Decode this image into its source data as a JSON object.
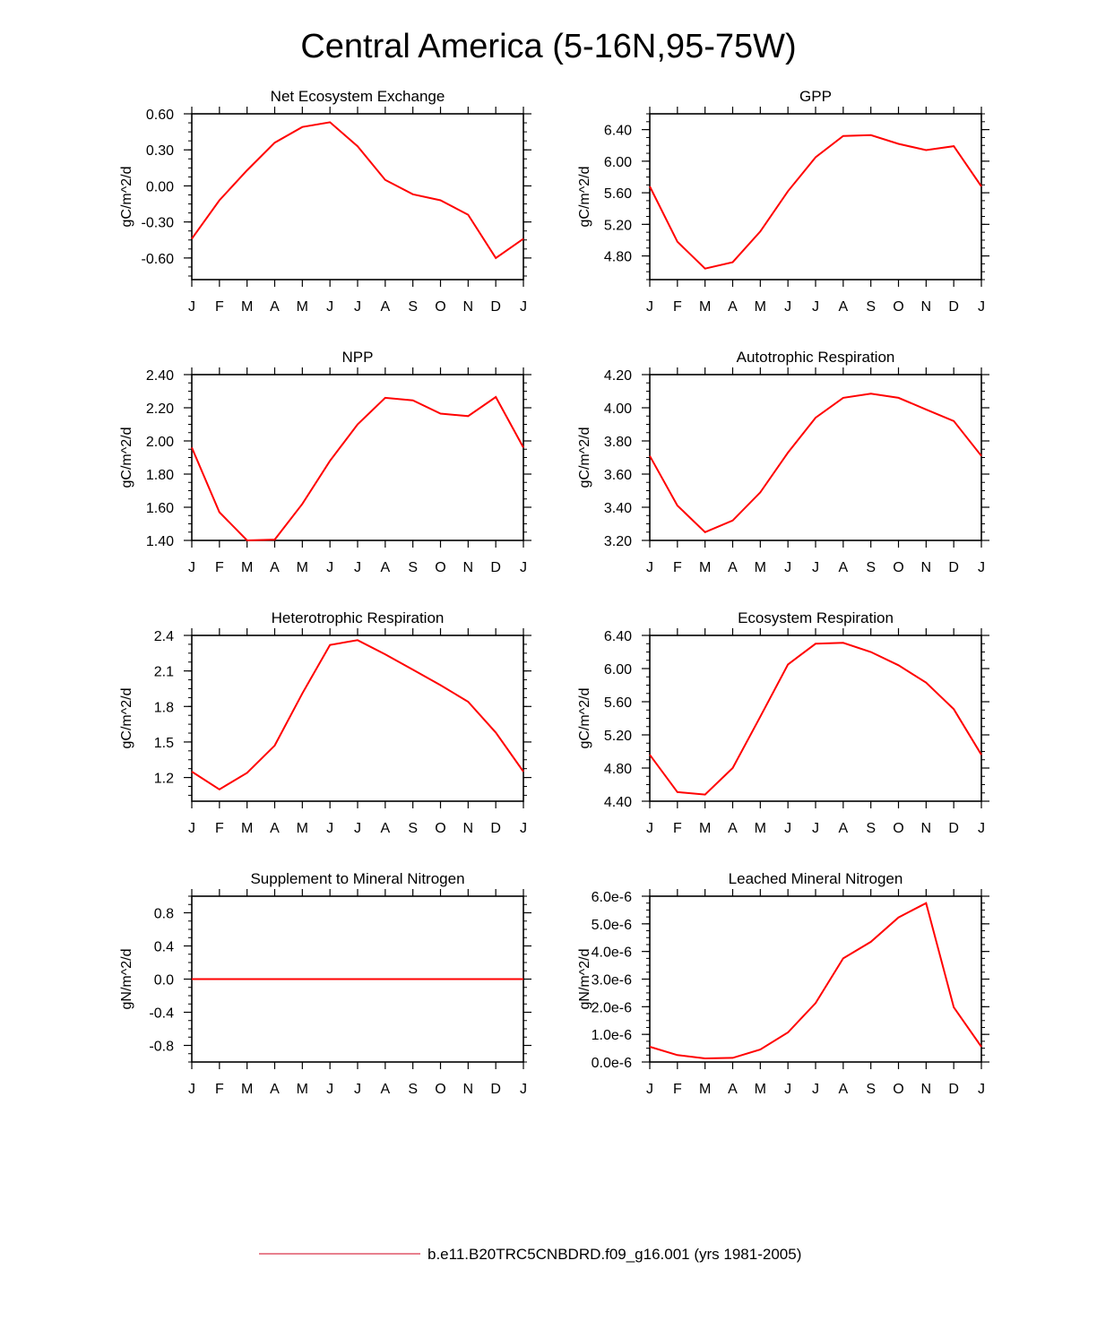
{
  "figure": {
    "title": "Central America (5-16N,95-75W)",
    "legend_label": "b.e11.B20TRC5CNBDRD.f09_g16.001 (yrs 1981-2005)",
    "line_color": "#ff0000",
    "legend_color": "#d9344a"
  },
  "chart_data": [
    {
      "type": "line",
      "title": "Net Ecosystem Exchange",
      "ylabel": "gC/m^2/d",
      "ylim": [
        -0.78,
        0.6
      ],
      "yticks": [
        0.6,
        0.3,
        0.0,
        -0.3,
        -0.6
      ],
      "ytick_labels": [
        "0.60",
        "0.30",
        "0.00",
        "-0.30",
        "-0.60"
      ],
      "x": [
        "J",
        "F",
        "M",
        "A",
        "M",
        "J",
        "J",
        "A",
        "S",
        "O",
        "N",
        "D",
        "J"
      ],
      "series": [
        {
          "values": [
            -0.44,
            -0.12,
            0.13,
            0.36,
            0.49,
            0.53,
            0.33,
            0.05,
            -0.07,
            -0.12,
            -0.24,
            -0.6,
            -0.44
          ]
        }
      ]
    },
    {
      "type": "line",
      "title": "GPP",
      "ylabel": "gC/m^2/d",
      "ylim": [
        4.5,
        6.6
      ],
      "yticks": [
        6.4,
        6.0,
        5.6,
        5.2,
        4.8
      ],
      "ytick_labels": [
        "6.40",
        "6.00",
        "5.60",
        "5.20",
        "4.80"
      ],
      "x": [
        "J",
        "F",
        "M",
        "A",
        "M",
        "J",
        "J",
        "A",
        "S",
        "O",
        "N",
        "D",
        "J"
      ],
      "series": [
        {
          "values": [
            5.68,
            4.98,
            4.64,
            4.72,
            5.11,
            5.62,
            6.05,
            6.32,
            6.33,
            6.22,
            6.14,
            6.19,
            5.68
          ]
        }
      ]
    },
    {
      "type": "line",
      "title": "NPP",
      "ylabel": "gC/m^2/d",
      "ylim": [
        1.4,
        2.4
      ],
      "yticks": [
        2.4,
        2.2,
        2.0,
        1.8,
        1.6,
        1.4
      ],
      "ytick_labels": [
        "2.40",
        "2.20",
        "2.00",
        "1.80",
        "1.60",
        "1.40"
      ],
      "x": [
        "J",
        "F",
        "M",
        "A",
        "M",
        "J",
        "J",
        "A",
        "S",
        "O",
        "N",
        "D",
        "J"
      ],
      "series": [
        {
          "values": [
            1.96,
            1.57,
            1.4,
            1.405,
            1.62,
            1.88,
            2.1,
            2.26,
            2.245,
            2.165,
            2.15,
            2.265,
            1.96
          ]
        }
      ]
    },
    {
      "type": "line",
      "title": "Autotrophic Respiration",
      "ylabel": "gC/m^2/d",
      "ylim": [
        3.2,
        4.2
      ],
      "yticks": [
        4.2,
        4.0,
        3.8,
        3.6,
        3.4,
        3.2
      ],
      "ytick_labels": [
        "4.20",
        "4.00",
        "3.80",
        "3.60",
        "3.40",
        "3.20"
      ],
      "x": [
        "J",
        "F",
        "M",
        "A",
        "M",
        "J",
        "J",
        "A",
        "S",
        "O",
        "N",
        "D",
        "J"
      ],
      "series": [
        {
          "values": [
            3.71,
            3.41,
            3.25,
            3.32,
            3.49,
            3.73,
            3.94,
            4.06,
            4.085,
            4.06,
            3.99,
            3.92,
            3.71
          ]
        }
      ]
    },
    {
      "type": "line",
      "title": "Heterotrophic Respiration",
      "ylabel": "gC/m^2/d",
      "ylim": [
        1.0,
        2.4
      ],
      "yticks": [
        2.4,
        2.1,
        1.8,
        1.5,
        1.2
      ],
      "ytick_labels": [
        "2.4",
        "2.1",
        "1.8",
        "1.5",
        "1.2"
      ],
      "x": [
        "J",
        "F",
        "M",
        "A",
        "M",
        "J",
        "J",
        "A",
        "S",
        "O",
        "N",
        "D",
        "J"
      ],
      "series": [
        {
          "values": [
            1.25,
            1.1,
            1.24,
            1.47,
            1.91,
            2.32,
            2.36,
            2.24,
            2.11,
            1.98,
            1.84,
            1.58,
            1.25
          ]
        }
      ]
    },
    {
      "type": "line",
      "title": "Ecosystem Respiration",
      "ylabel": "gC/m^2/d",
      "ylim": [
        4.4,
        6.4
      ],
      "yticks": [
        6.4,
        6.0,
        5.6,
        5.2,
        4.8,
        4.4
      ],
      "ytick_labels": [
        "6.40",
        "6.00",
        "5.60",
        "5.20",
        "4.80",
        "4.40"
      ],
      "x": [
        "J",
        "F",
        "M",
        "A",
        "M",
        "J",
        "J",
        "A",
        "S",
        "O",
        "N",
        "D",
        "J"
      ],
      "series": [
        {
          "values": [
            4.96,
            4.51,
            4.48,
            4.8,
            5.42,
            6.05,
            6.3,
            6.31,
            6.2,
            6.04,
            5.83,
            5.51,
            4.96
          ]
        }
      ]
    },
    {
      "type": "line",
      "title": "Supplement to Mineral Nitrogen",
      "ylabel": "gN/m^2/d",
      "ylim": [
        -1.0,
        1.0
      ],
      "yticks": [
        0.8,
        0.4,
        0.0,
        -0.4,
        -0.8
      ],
      "ytick_labels": [
        "0.8",
        "0.4",
        "0.0",
        "-0.4",
        "-0.8"
      ],
      "x": [
        "J",
        "F",
        "M",
        "A",
        "M",
        "J",
        "J",
        "A",
        "S",
        "O",
        "N",
        "D",
        "J"
      ],
      "series": [
        {
          "values": [
            0,
            0,
            0,
            0,
            0,
            0,
            0,
            0,
            0,
            0,
            0,
            0,
            0
          ]
        }
      ]
    },
    {
      "type": "line",
      "title": "Leached Mineral Nitrogen",
      "ylabel": "gN/m^2/d",
      "ylim": [
        0,
        6e-06
      ],
      "yticks": [
        6e-06,
        5e-06,
        4e-06,
        3e-06,
        2e-06,
        1e-06,
        0
      ],
      "ytick_labels": [
        "6.0e-6",
        "5.0e-6",
        "4.0e-6",
        "3.0e-6",
        "2.0e-6",
        "1.0e-6",
        "0.0e-6"
      ],
      "x": [
        "J",
        "F",
        "M",
        "A",
        "M",
        "J",
        "J",
        "A",
        "S",
        "O",
        "N",
        "D",
        "J"
      ],
      "series": [
        {
          "values": [
            5.5e-07,
            2.5e-07,
            1.3e-07,
            1.5e-07,
            4.5e-07,
            1.07e-06,
            2.13e-06,
            3.75e-06,
            4.35e-06,
            5.23e-06,
            5.75e-06,
            1.98e-06,
            5.5e-07
          ]
        }
      ]
    }
  ]
}
